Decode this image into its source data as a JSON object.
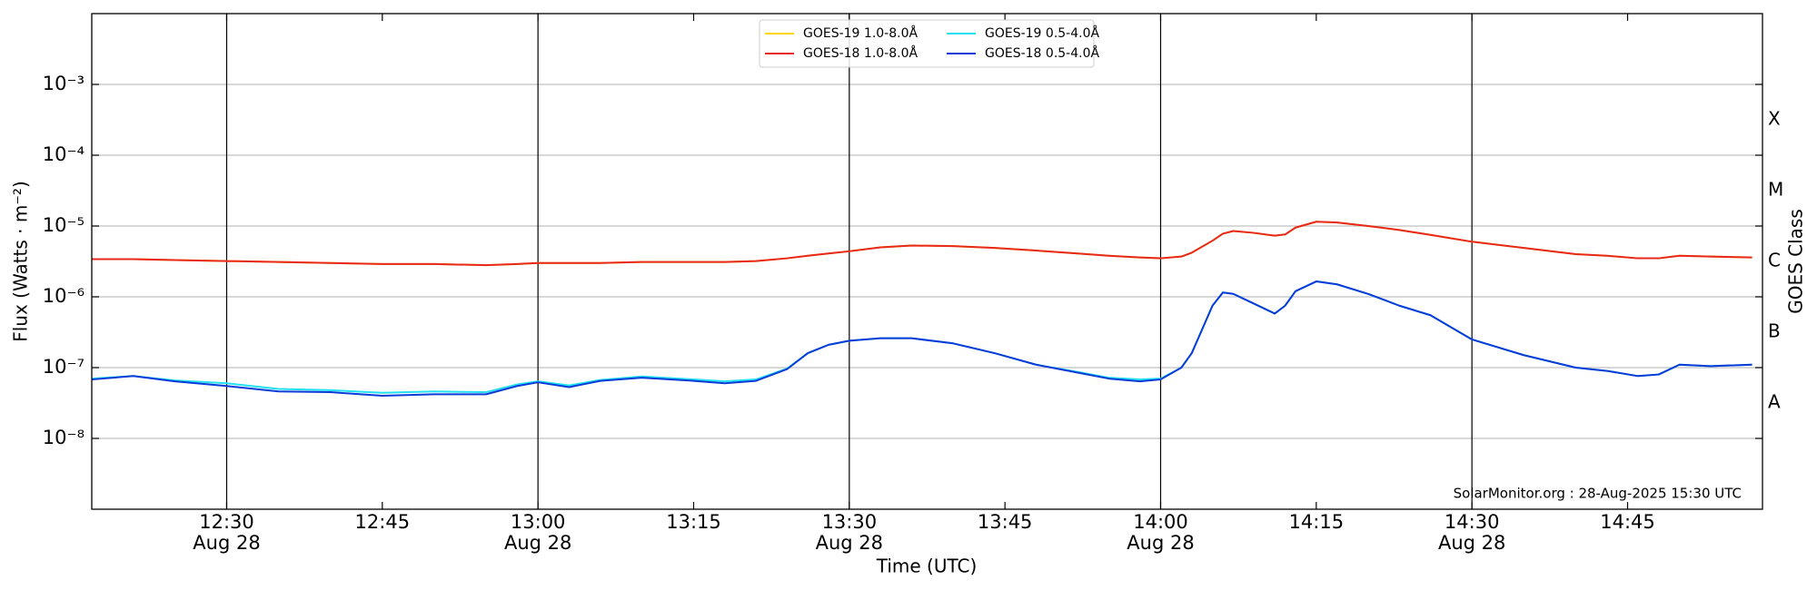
{
  "chart_data": {
    "type": "line",
    "annotation": "SolarMonitor.org : 28-Aug-2025 15:30 UTC",
    "xlabel": "Time (UTC)",
    "ylabel": "Flux (Watts · m⁻²)",
    "y2label": "GOES Class",
    "log_y": true,
    "grid": true,
    "legend": "upper center",
    "x": [
      "12:17",
      "12:21",
      "12:25",
      "12:30",
      "12:35",
      "12:40",
      "12:45",
      "12:50",
      "12:55",
      "12:58",
      "13:00",
      "13:03",
      "13:06",
      "13:10",
      "13:15",
      "13:18",
      "13:21",
      "13:24",
      "13:26",
      "13:28",
      "13:30",
      "13:33",
      "13:36",
      "13:40",
      "13:44",
      "13:48",
      "13:52",
      "13:55",
      "13:58",
      "14:00",
      "14:02",
      "14:03",
      "14:05",
      "14:06",
      "14:07",
      "14:09",
      "14:11",
      "14:12",
      "14:13",
      "14:15",
      "14:17",
      "14:20",
      "14:23",
      "14:26",
      "14:30",
      "14:35",
      "14:40",
      "14:43",
      "14:46",
      "14:48",
      "14:50",
      "14:53",
      "14:57"
    ],
    "xlim": [
      "12:17",
      "14:58"
    ],
    "xticks": [
      {
        "value": "12:30",
        "label": "12:30",
        "date": "Aug 28"
      },
      "12:45",
      {
        "value": "13:00",
        "label": "13:00",
        "date": "Aug 28"
      },
      "13:15",
      {
        "value": "13:30",
        "label": "13:30",
        "date": "Aug 28"
      },
      "13:45",
      {
        "value": "14:00",
        "label": "14:00",
        "date": "Aug 28"
      },
      "14:15",
      {
        "value": "14:30",
        "label": "14:30",
        "date": "Aug 28"
      },
      "14:45"
    ],
    "ylim": [
      1e-09,
      0.01
    ],
    "yticks": [
      {
        "value": 1e-08,
        "label": "10⁻⁸"
      },
      {
        "value": 1e-07,
        "label": "10⁻⁷"
      },
      {
        "value": 1e-06,
        "label": "10⁻⁶"
      },
      {
        "value": 1e-05,
        "label": "10⁻⁵"
      },
      {
        "value": 0.0001,
        "label": "10⁻⁴"
      },
      {
        "value": 0.001,
        "label": "10⁻³"
      }
    ],
    "y2lim": [
      1e-09,
      0.01
    ],
    "y2ticks": [
      {
        "value": 3.16e-08,
        "label": "A"
      },
      {
        "value": 3.16e-07,
        "label": "B"
      },
      {
        "value": 3.16e-06,
        "label": "C"
      },
      {
        "value": 3.16e-05,
        "label": "M"
      },
      {
        "value": 0.000316,
        "label": "X"
      }
    ],
    "series": [
      {
        "name": "GOES-19 1.0-8.0Å",
        "color": "#ffd700",
        "values": [
          3.4e-06,
          3.4e-06,
          3.3e-06,
          3.2e-06,
          3.1e-06,
          3e-06,
          2.9e-06,
          2.9e-06,
          2.8e-06,
          2.9e-06,
          3e-06,
          3e-06,
          3e-06,
          3.1e-06,
          3.1e-06,
          3.1e-06,
          3.2e-06,
          3.5e-06,
          3.8e-06,
          4.1e-06,
          4.4e-06,
          5e-06,
          5.3e-06,
          5.2e-06,
          4.9e-06,
          4.5e-06,
          4.1e-06,
          3.8e-06,
          3.6e-06,
          3.5e-06,
          3.7e-06,
          4.2e-06,
          6.2e-06,
          7.8e-06,
          8.5e-06,
          8e-06,
          7.3e-06,
          7.6e-06,
          9.5e-06,
          1.15e-05,
          1.12e-05,
          1e-05,
          8.8e-06,
          7.5e-06,
          6e-06,
          4.9e-06,
          4e-06,
          3.8e-06,
          3.5e-06,
          3.5e-06,
          3.8e-06,
          3.7e-06,
          3.6e-06
        ]
      },
      {
        "name": "GOES-18 1.0-8.0Å",
        "color": "#e8281e",
        "values": [
          3.4e-06,
          3.4e-06,
          3.3e-06,
          3.2e-06,
          3.1e-06,
          3e-06,
          2.9e-06,
          2.9e-06,
          2.8e-06,
          2.9e-06,
          3e-06,
          3e-06,
          3e-06,
          3.1e-06,
          3.1e-06,
          3.1e-06,
          3.2e-06,
          3.5e-06,
          3.8e-06,
          4.1e-06,
          4.4e-06,
          5e-06,
          5.3e-06,
          5.2e-06,
          4.9e-06,
          4.5e-06,
          4.1e-06,
          3.8e-06,
          3.6e-06,
          3.5e-06,
          3.7e-06,
          4.2e-06,
          6.2e-06,
          7.8e-06,
          8.5e-06,
          8e-06,
          7.3e-06,
          7.6e-06,
          9.5e-06,
          1.15e-05,
          1.12e-05,
          1e-05,
          8.8e-06,
          7.5e-06,
          6e-06,
          4.9e-06,
          4e-06,
          3.8e-06,
          3.5e-06,
          3.5e-06,
          3.8e-06,
          3.7e-06,
          3.6e-06
        ]
      },
      {
        "name": "GOES-19 0.5-4.0Å",
        "color": "#22e0f0",
        "values": [
          7e-08,
          7.6e-08,
          6.6e-08,
          6e-08,
          5e-08,
          4.8e-08,
          4.4e-08,
          4.6e-08,
          4.5e-08,
          5.8e-08,
          6.4e-08,
          5.6e-08,
          6.7e-08,
          7.5e-08,
          6.8e-08,
          6.4e-08,
          6.8e-08,
          9.7e-08,
          1.6e-07,
          2.1e-07,
          2.4e-07,
          2.6e-07,
          2.6e-07,
          2.2e-07,
          1.6e-07,
          1.1e-07,
          8.7e-08,
          7.2e-08,
          6.8e-08,
          7e-08,
          1e-07,
          1.6e-07,
          7.5e-07,
          1.15e-06,
          1.1e-06,
          8e-07,
          5.8e-07,
          7.5e-07,
          1.2e-06,
          1.65e-06,
          1.5e-06,
          1.1e-06,
          7.5e-07,
          5.5e-07,
          2.5e-07,
          1.5e-07,
          1e-07,
          9e-08,
          7.6e-08,
          8e-08,
          1.1e-07,
          1.05e-07,
          1.1e-07
        ]
      },
      {
        "name": "GOES-18 0.5-4.0Å",
        "color": "#0a3ad8",
        "values": [
          6.8e-08,
          7.6e-08,
          6.4e-08,
          5.5e-08,
          4.6e-08,
          4.5e-08,
          4e-08,
          4.2e-08,
          4.2e-08,
          5.5e-08,
          6.2e-08,
          5.3e-08,
          6.5e-08,
          7.2e-08,
          6.5e-08,
          6e-08,
          6.5e-08,
          9.5e-08,
          1.6e-07,
          2.1e-07,
          2.4e-07,
          2.6e-07,
          2.6e-07,
          2.2e-07,
          1.6e-07,
          1.1e-07,
          8.5e-08,
          7e-08,
          6.4e-08,
          6.8e-08,
          1e-07,
          1.6e-07,
          7.5e-07,
          1.15e-06,
          1.1e-06,
          8e-07,
          5.8e-07,
          7.5e-07,
          1.2e-06,
          1.65e-06,
          1.5e-06,
          1.1e-06,
          7.5e-07,
          5.5e-07,
          2.5e-07,
          1.5e-07,
          1e-07,
          9e-08,
          7.6e-08,
          8e-08,
          1.1e-07,
          1.05e-07,
          1.1e-07
        ]
      }
    ]
  }
}
